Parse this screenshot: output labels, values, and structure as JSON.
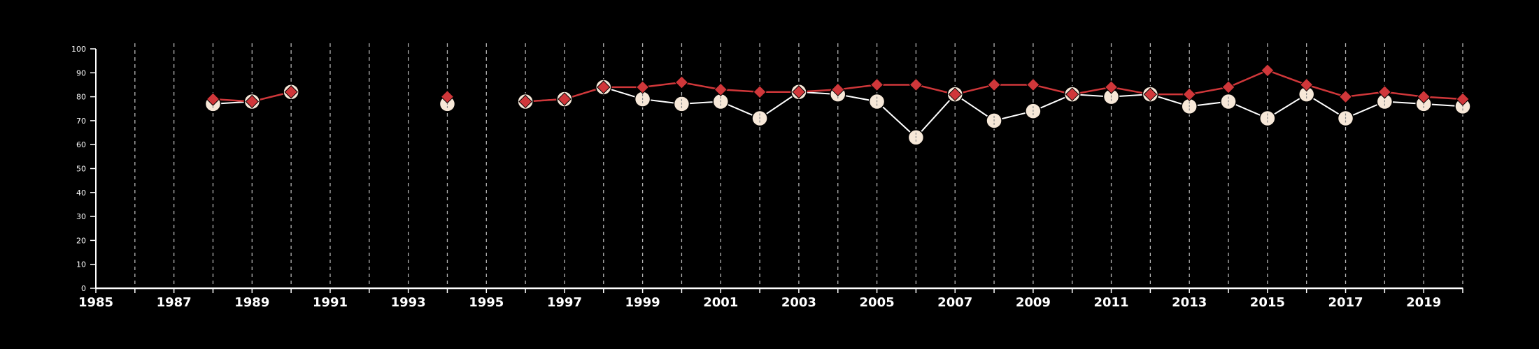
{
  "chart_data": {
    "type": "line",
    "title": "",
    "xlabel": "",
    "ylabel": "",
    "xlim": [
      1985,
      2020
    ],
    "ylim": [
      0,
      100
    ],
    "yticks": [
      0,
      10,
      20,
      30,
      40,
      50,
      60,
      70,
      80,
      90,
      100
    ],
    "xticks_labeled": [
      1985,
      1987,
      1989,
      1991,
      1993,
      1995,
      1997,
      1999,
      2001,
      2003,
      2005,
      2007,
      2009,
      2011,
      2013,
      2015,
      2017,
      2019
    ],
    "x_tick_labels": [
      "1985",
      "1987",
      "1989",
      "1991",
      "1993",
      "1995",
      "1997",
      "1999",
      "2001",
      "2003",
      "2005",
      "2007",
      "2009",
      "2011",
      "2013",
      "2015",
      "2017",
      "2019"
    ],
    "y_tick_labels": [
      "0",
      "10",
      "20",
      "30",
      "40",
      "50",
      "60",
      "70",
      "80",
      "90",
      "100"
    ],
    "vertical_grid": "dashed at every year",
    "background_color": "#000000",
    "axis_color": "#ffffff",
    "series": [
      {
        "marker": "diamond",
        "color": "#d0373a",
        "segments": [
          [
            [
              1988,
              79
            ],
            [
              1989,
              78
            ],
            [
              1990,
              82
            ]
          ],
          [
            [
              1994,
              80
            ]
          ],
          [
            [
              1996,
              78
            ],
            [
              1997,
              79
            ],
            [
              1998,
              84
            ],
            [
              1999,
              84
            ],
            [
              2000,
              86
            ],
            [
              2001,
              83
            ],
            [
              2002,
              82
            ],
            [
              2003,
              82
            ],
            [
              2004,
              83
            ],
            [
              2005,
              85
            ],
            [
              2006,
              85
            ],
            [
              2007,
              81
            ],
            [
              2008,
              85
            ],
            [
              2009,
              85
            ],
            [
              2010,
              81
            ],
            [
              2011,
              84
            ],
            [
              2012,
              81
            ],
            [
              2013,
              81
            ],
            [
              2014,
              84
            ],
            [
              2015,
              91
            ],
            [
              2016,
              85
            ],
            [
              2017,
              80
            ],
            [
              2018,
              82
            ],
            [
              2019,
              80
            ],
            [
              2020,
              79
            ]
          ]
        ]
      },
      {
        "marker": "circle",
        "color": "#f7e8d8",
        "line_color": "#ffffff",
        "segments": [
          [
            [
              1988,
              77
            ],
            [
              1989,
              78
            ],
            [
              1990,
              82
            ]
          ],
          [
            [
              1994,
              77
            ]
          ],
          [
            [
              1996,
              78
            ],
            [
              1997,
              79
            ],
            [
              1998,
              84
            ],
            [
              1999,
              79
            ],
            [
              2000,
              77
            ],
            [
              2001,
              78
            ],
            [
              2002,
              71
            ],
            [
              2003,
              82
            ],
            [
              2004,
              81
            ],
            [
              2005,
              78
            ],
            [
              2006,
              63
            ],
            [
              2007,
              81
            ],
            [
              2008,
              70
            ],
            [
              2009,
              74
            ],
            [
              2010,
              81
            ],
            [
              2011,
              80
            ],
            [
              2012,
              81
            ],
            [
              2013,
              76
            ],
            [
              2014,
              78
            ],
            [
              2015,
              71
            ],
            [
              2016,
              81
            ],
            [
              2017,
              71
            ],
            [
              2018,
              78
            ],
            [
              2019,
              77
            ],
            [
              2020,
              76
            ]
          ]
        ]
      }
    ]
  }
}
